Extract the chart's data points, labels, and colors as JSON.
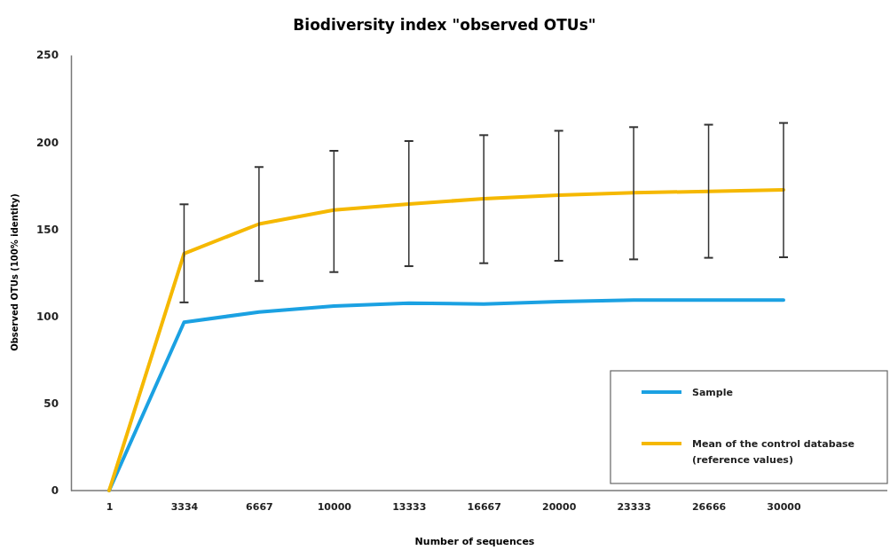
{
  "chart_data": {
    "type": "line",
    "title": "Biodiversity index \"observed OTUs\"",
    "xlabel": "Number of sequences",
    "ylabel": "Observed OTUs (100% identity)",
    "categories": [
      "1",
      "3334",
      "6667",
      "10000",
      "13333",
      "16667",
      "20000",
      "23333",
      "26666",
      "30000"
    ],
    "ylim": [
      0,
      250
    ],
    "yticks": [
      0,
      50,
      100,
      150,
      200,
      250
    ],
    "grid": false,
    "legend": "bottom right",
    "marker": "none",
    "line_style": "solid",
    "series": [
      {
        "name": "Sample",
        "color": "#1ba1e2",
        "values": [
          0,
          96.6,
          102.5,
          105.9,
          107.6,
          107.1,
          108.5,
          109.3,
          109.3,
          109.3
        ]
      },
      {
        "name": "Mean of the control database (reference values)",
        "color": "#f5b800",
        "values": [
          0,
          136,
          153,
          161,
          164.5,
          167.5,
          169.5,
          171,
          171.7,
          172.6
        ],
        "errors": [
          null,
          [
            108,
            164.3
          ],
          [
            120.3,
            185.7
          ],
          [
            125.4,
            195
          ],
          [
            128.8,
            200.6
          ],
          [
            130.5,
            204
          ],
          [
            131.9,
            206.5
          ],
          [
            132.7,
            208.6
          ],
          [
            133.6,
            210
          ],
          [
            133.9,
            211
          ]
        ]
      }
    ]
  }
}
